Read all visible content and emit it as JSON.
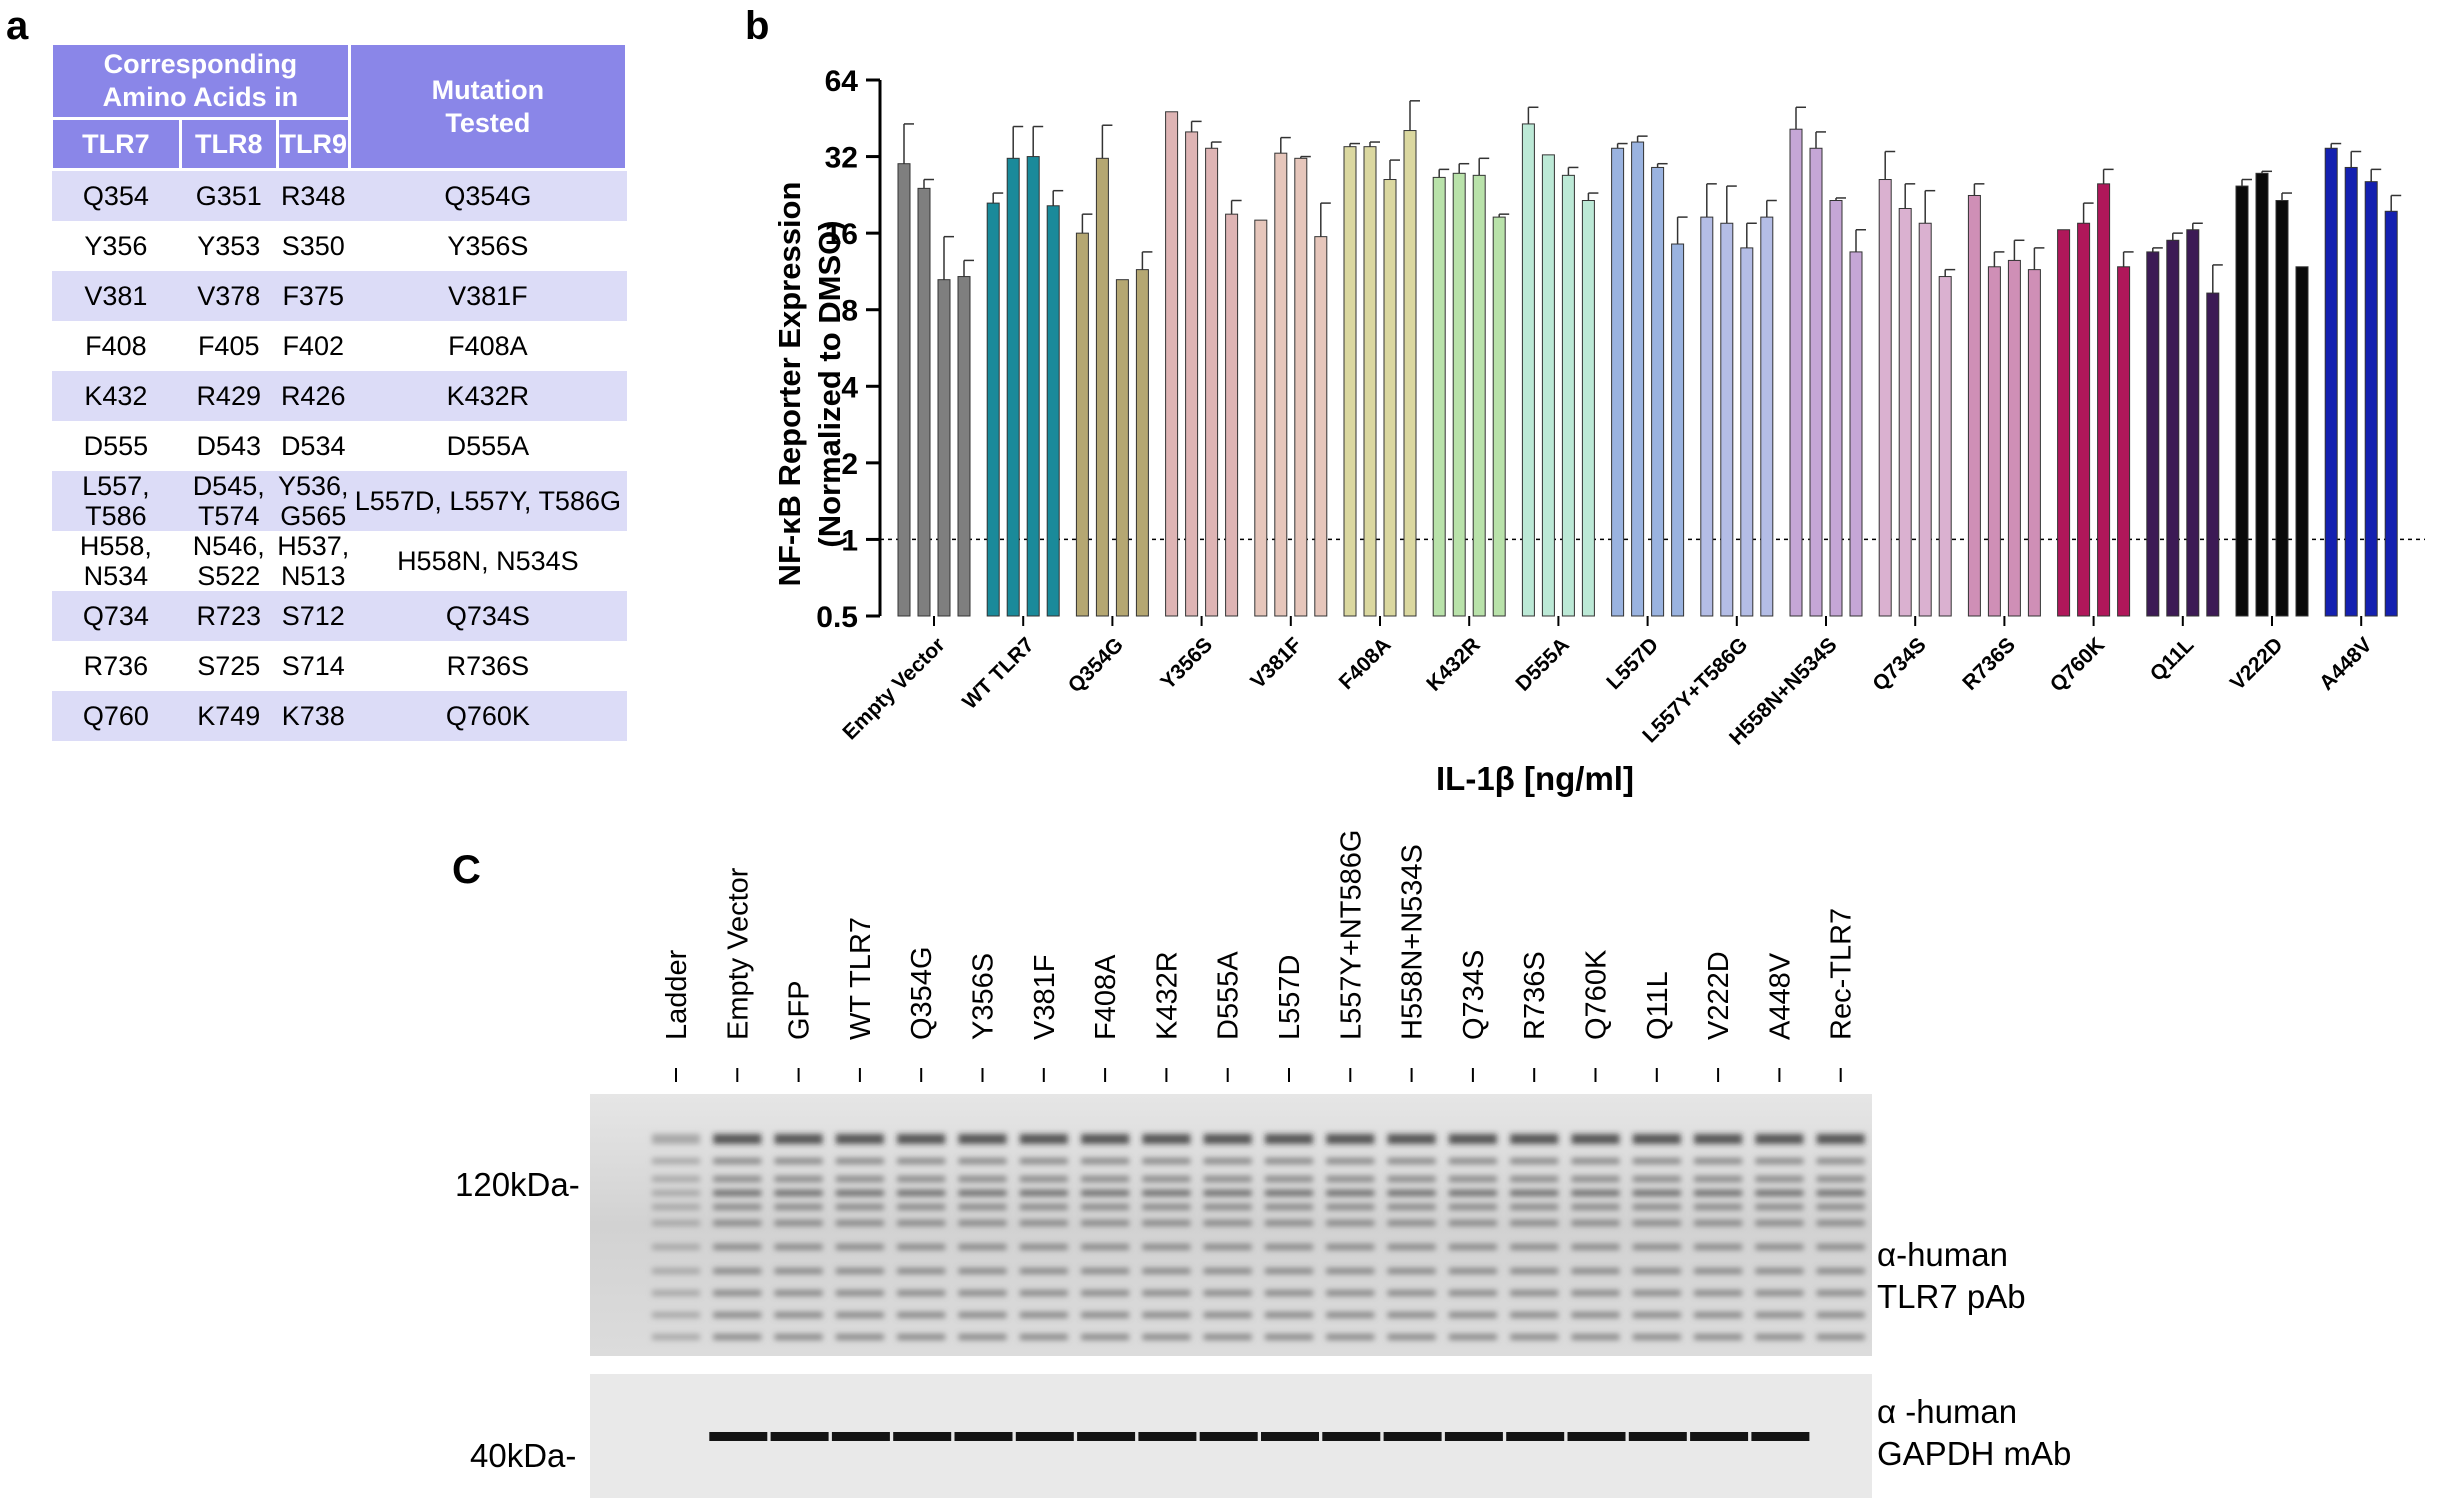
{
  "panels": {
    "a": "a",
    "b": "b",
    "c": "C"
  },
  "table": {
    "header_group": "Corresponding Amino Acids in",
    "header_mut": "Mutation Tested",
    "cols": [
      "TLR7",
      "TLR8",
      "TLR9"
    ],
    "rows": [
      {
        "tlr7": "Q354",
        "tlr8": "G351",
        "tlr9": "R348",
        "mut": "Q354G"
      },
      {
        "tlr7": "Y356",
        "tlr8": "Y353",
        "tlr9": "S350",
        "mut": "Y356S"
      },
      {
        "tlr7": "V381",
        "tlr8": "V378",
        "tlr9": "F375",
        "mut": "V381F"
      },
      {
        "tlr7": "F408",
        "tlr8": "F405",
        "tlr9": "F402",
        "mut": "F408A"
      },
      {
        "tlr7": "K432",
        "tlr8": "R429",
        "tlr9": "R426",
        "mut": "K432R"
      },
      {
        "tlr7": "D555",
        "tlr8": "D543",
        "tlr9": "D534",
        "mut": "D555A"
      },
      {
        "tlr7": "L557, T586",
        "tlr8": "D545, T574",
        "tlr9": "Y536, G565",
        "mut": "L557D, L557Y, T586G"
      },
      {
        "tlr7": "H558, N534",
        "tlr8": "N546, S522",
        "tlr9": "H537, N513",
        "mut": "H558N, N534S"
      },
      {
        "tlr7": "Q734",
        "tlr8": "R723",
        "tlr9": "S712",
        "mut": "Q734S"
      },
      {
        "tlr7": "R736",
        "tlr8": "S725",
        "tlr9": "S714",
        "mut": "R736S"
      },
      {
        "tlr7": "Q760",
        "tlr8": "K749",
        "tlr9": "K738",
        "mut": "Q760K"
      }
    ]
  },
  "chart_data": {
    "type": "bar",
    "ylabel_line1": "NF-κB Reporter Expression",
    "ylabel_line2": "(Normalized to DMSO)",
    "xlabel": "IL-1β [ng/ml]",
    "yscale": "log2",
    "ylim": [
      0.5,
      64
    ],
    "yticks": [
      0.5,
      1,
      2,
      4,
      8,
      16,
      32,
      64
    ],
    "ytick_labels": [
      "0.5",
      "1",
      "2",
      "4",
      "8",
      "16",
      "32",
      "64"
    ],
    "reference_line": 1,
    "groups": [
      {
        "name": "Empty Vector",
        "color": "#7f7f7f",
        "values": [
          30,
          24,
          10.5,
          10.8
        ],
        "errors": [
          43,
          26,
          15.5,
          12.5
        ]
      },
      {
        "name": "WT TLR7",
        "color": "#1a8a9a",
        "values": [
          21,
          31.5,
          32,
          20.5
        ],
        "errors": [
          23,
          42,
          42,
          23.5
        ]
      },
      {
        "name": "Q354G",
        "color": "#b5a772",
        "values": [
          16,
          31.5,
          10.5,
          11.5
        ],
        "errors": [
          19,
          42.5,
          10.5,
          13.5
        ]
      },
      {
        "name": "Y356S",
        "color": "#deb4b4",
        "values": [
          48,
          40,
          34.5,
          19
        ],
        "errors": [
          48,
          44,
          36.5,
          21.5
        ]
      },
      {
        "name": "V381F",
        "color": "#e6c6bb",
        "values": [
          18,
          33,
          31.5,
          15.5
        ],
        "errors": [
          18,
          38,
          32,
          21
        ]
      },
      {
        "name": "F408A",
        "color": "#dbd8a0",
        "values": [
          35,
          35,
          26,
          40.5
        ],
        "errors": [
          36,
          36.5,
          31,
          53
        ]
      },
      {
        "name": "K432R",
        "color": "#b9e2aa",
        "values": [
          26.5,
          27.5,
          27,
          18.5
        ],
        "errors": [
          28.5,
          30,
          31.5,
          19
        ]
      },
      {
        "name": "D555A",
        "color": "#bce9d6",
        "values": [
          43,
          32.5,
          27,
          21.5
        ],
        "errors": [
          50,
          32.5,
          29,
          23
        ]
      },
      {
        "name": "L557D",
        "color": "#9ab3e0",
        "values": [
          34.5,
          36.5,
          29,
          14.5
        ],
        "errors": [
          36,
          38.5,
          30,
          18.5
        ]
      },
      {
        "name": "L557Y+T586G",
        "color": "#b4bde6",
        "values": [
          18.5,
          17.5,
          14,
          18.5
        ],
        "errors": [
          25,
          24.5,
          17.5,
          21.5
        ]
      },
      {
        "name": "H558N+N534S",
        "color": "#c5a6d6",
        "values": [
          41,
          34.5,
          21.5,
          13.5
        ],
        "errors": [
          50,
          40,
          22,
          16.5
        ]
      },
      {
        "name": "Q734S",
        "color": "#dab1d0",
        "values": [
          26,
          20,
          17.5,
          10.8
        ],
        "errors": [
          33.5,
          25,
          23.5,
          11.5
        ]
      },
      {
        "name": "R736S",
        "color": "#cf8fb6",
        "values": [
          22.5,
          11.8,
          12.5,
          11.5
        ],
        "errors": [
          25,
          13.5,
          15,
          14
        ]
      },
      {
        "name": "Q760K",
        "color": "#b0175a",
        "values": [
          16.5,
          17.5,
          25,
          11.8
        ],
        "errors": [
          16.5,
          21,
          28.5,
          13.5
        ]
      },
      {
        "name": "Q11L",
        "color": "#3c1a55",
        "values": [
          13.5,
          15,
          16.5,
          9.3
        ],
        "errors": [
          14,
          16,
          17.5,
          12
        ]
      },
      {
        "name": "V222D",
        "color": "#0a0a0a",
        "values": [
          24.5,
          27.5,
          21.5,
          11.8
        ],
        "errors": [
          26,
          28,
          23,
          11.8
        ]
      },
      {
        "name": "A448V",
        "color": "#1420b0",
        "values": [
          34.5,
          29,
          25.5,
          19.5
        ],
        "errors": [
          36,
          33.5,
          28.5,
          22.5
        ]
      }
    ]
  },
  "blot": {
    "lanes": [
      "Ladder",
      "Empty Vector",
      "GFP",
      "WT TLR7",
      "Q354G",
      "Y356S",
      "V381F",
      "F408A",
      "K432R",
      "D555A",
      "L557D",
      "L557Y+NT586G",
      "H558N+N534S",
      "Q734S",
      "R736S",
      "Q760K",
      "Q11L",
      "V222D",
      "A448V",
      "Rec-TLR7"
    ],
    "marker_top": "120kDa-",
    "marker_bottom": "40kDa-",
    "ab_top_1": "α-human",
    "ab_top_2": "TLR7 pAb",
    "ab_bottom_1": "α -human",
    "ab_bottom_2": "GAPDH mAb"
  }
}
